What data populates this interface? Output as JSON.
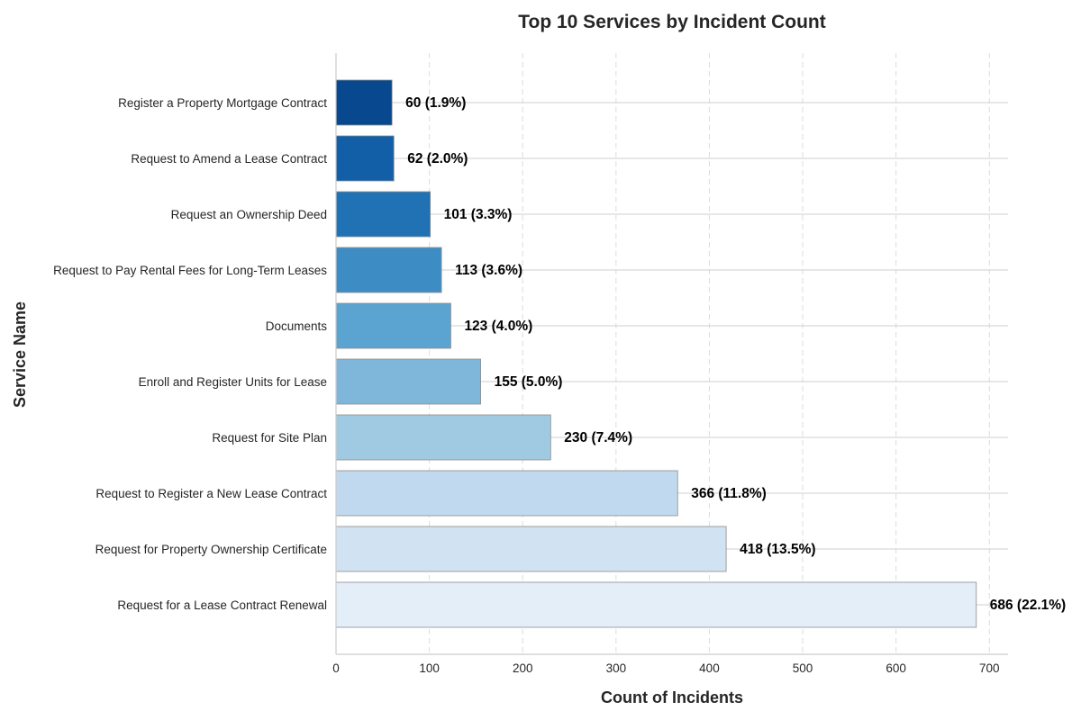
{
  "chart_data": {
    "type": "bar",
    "orientation": "horizontal",
    "title": "Top 10 Services by Incident Count",
    "xlabel": "Count of Incidents",
    "ylabel": "Service Name",
    "xlim": [
      0,
      720
    ],
    "xticks": [
      0,
      100,
      200,
      300,
      400,
      500,
      600,
      700
    ],
    "grid": true,
    "categories": [
      "Register a Property Mortgage Contract",
      "Request to Amend a Lease Contract",
      "Request an Ownership Deed",
      "Request to Pay Rental Fees for Long-Term Leases",
      "Documents",
      "Enroll and Register Units for Lease",
      "Request for Site Plan",
      "Request to Register a New Lease Contract",
      "Request for Property Ownership Certificate",
      "Request for a Lease Contract Renewal"
    ],
    "values": [
      60,
      62,
      101,
      113,
      123,
      155,
      230,
      366,
      418,
      686
    ],
    "data_labels": [
      "60 (1.9%)",
      "62 (2.0%)",
      "101 (3.3%)",
      "113 (3.6%)",
      "123 (4.0%)",
      "155 (5.0%)",
      "230 (7.4%)",
      "366 (11.8%)",
      "418 (13.5%)",
      "686 (22.1%)"
    ],
    "colors": [
      "#08488e",
      "#135fa7",
      "#2171b5",
      "#3d8dc4",
      "#5ba3d0",
      "#7fb7da",
      "#a0cae1",
      "#c1d9ee",
      "#d1e3f3",
      "#e3eef9"
    ]
  }
}
